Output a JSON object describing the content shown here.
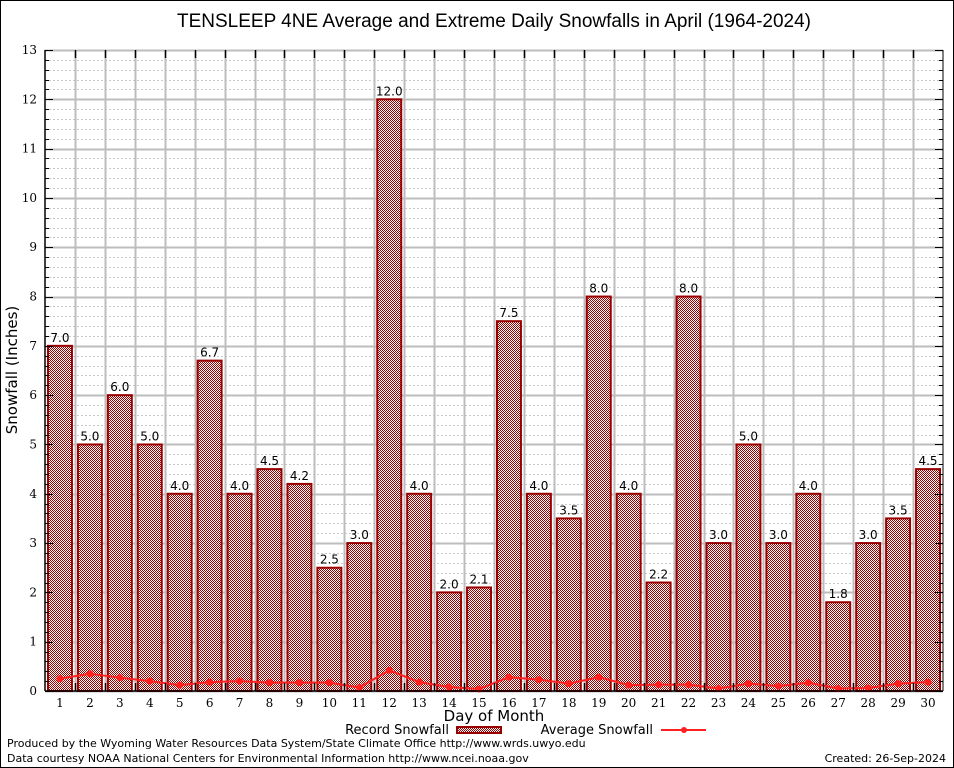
{
  "chart_data": {
    "type": "bar",
    "title": "TENSLEEP 4NE Average and Extreme Daily Snowfalls in April (1964-2024)",
    "xlabel": "Day of Month",
    "ylabel": "Snowfall (Inches)",
    "ylim": [
      0,
      13
    ],
    "yticks": [
      0,
      1,
      2,
      3,
      4,
      5,
      6,
      7,
      8,
      9,
      10,
      11,
      12,
      13
    ],
    "grid": true,
    "legend_position": "bottom-center",
    "categories": [
      "1",
      "2",
      "3",
      "4",
      "5",
      "6",
      "7",
      "8",
      "9",
      "10",
      "11",
      "12",
      "13",
      "14",
      "15",
      "16",
      "17",
      "18",
      "19",
      "20",
      "21",
      "22",
      "23",
      "24",
      "25",
      "26",
      "27",
      "28",
      "29",
      "30"
    ],
    "series": [
      {
        "name": "Record Snowfall",
        "type": "bar",
        "color": "#990000",
        "values": [
          7.0,
          5.0,
          6.0,
          5.0,
          4.0,
          6.7,
          4.0,
          4.5,
          4.2,
          2.5,
          3.0,
          12.0,
          4.0,
          2.0,
          2.1,
          7.5,
          4.0,
          3.5,
          8.0,
          4.0,
          2.2,
          8.0,
          3.0,
          5.0,
          3.0,
          4.0,
          1.8,
          3.0,
          3.5,
          4.5
        ],
        "labels": [
          "7.0",
          "5.0",
          "6.0",
          "5.0",
          "4.0",
          "6.7",
          "4.0",
          "4.5",
          "4.2",
          "2.5",
          "3.0",
          "12.0",
          "4.0",
          "2.0",
          "2.1",
          "7.5",
          "4.0",
          "3.5",
          "8.0",
          "4.0",
          "2.2",
          "8.0",
          "3.0",
          "5.0",
          "3.0",
          "4.0",
          "1.8",
          "3.0",
          "3.5",
          "4.5"
        ]
      },
      {
        "name": "Average Snowfall",
        "type": "line",
        "color": "#ff2020",
        "values": [
          0.25,
          0.35,
          0.27,
          0.2,
          0.12,
          0.18,
          0.2,
          0.17,
          0.17,
          0.17,
          0.07,
          0.42,
          0.18,
          0.08,
          0.04,
          0.28,
          0.23,
          0.15,
          0.28,
          0.12,
          0.13,
          0.13,
          0.05,
          0.15,
          0.1,
          0.17,
          0.05,
          0.06,
          0.15,
          0.18
        ]
      }
    ]
  },
  "footer": {
    "produced_by": "Produced by the Wyoming Water Resources Data System/State Climate Office http://www.wrds.uwyo.edu",
    "data_courtesy": "Data courtesy NOAA National Centers for Environmental Information http://www.ncei.noaa.gov",
    "created": "Created: 26-Sep-2024"
  }
}
